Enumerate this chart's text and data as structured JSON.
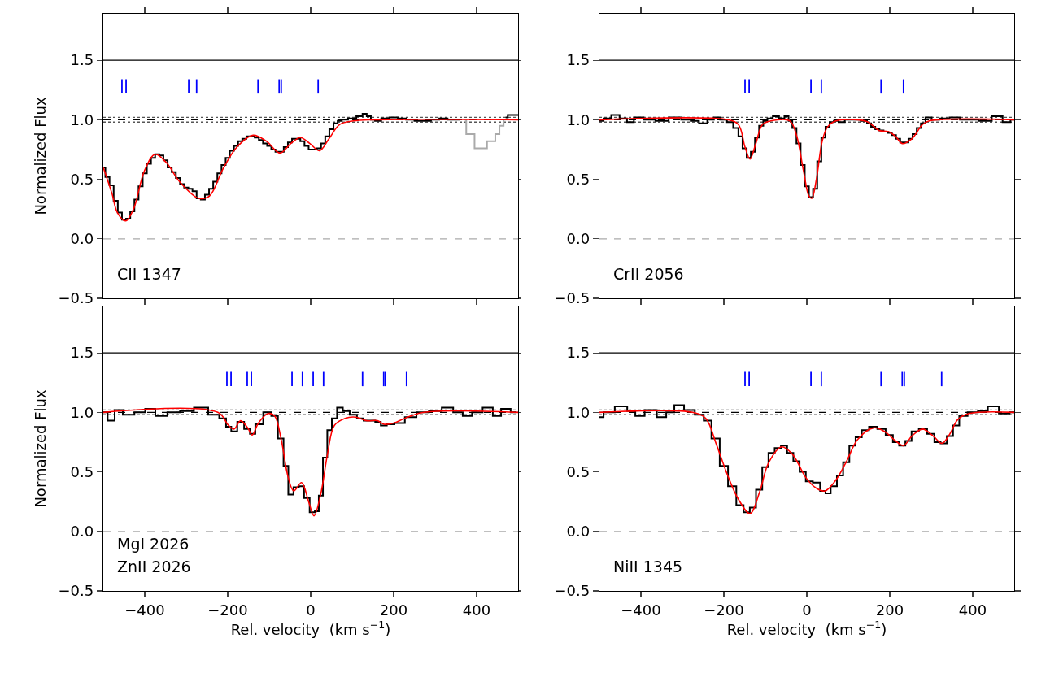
{
  "chart_data": [
    {
      "type": "line",
      "ylabel": "Normalized Flux",
      "annotations": [
        "CII 1347"
      ],
      "tick_labels": "y",
      "grid": false,
      "xlim": [
        -500,
        500
      ],
      "ylim": [
        -0.5,
        1.89
      ],
      "xticks": [
        {
          "value": -400,
          "label": null
        },
        {
          "value": -200,
          "label": null
        },
        {
          "value": 0,
          "label": null
        },
        {
          "value": 200,
          "label": null
        },
        {
          "value": 400,
          "label": null
        }
      ],
      "yticks": [
        {
          "value": -0.5,
          "label": "−0.5"
        },
        {
          "value": 0,
          "label": "0.0"
        },
        {
          "value": 0.5,
          "label": "0.5"
        },
        {
          "value": 1,
          "label": "1.0"
        },
        {
          "value": 1.5,
          "label": "1.5"
        }
      ],
      "ref_lines": [
        {
          "axis": "y",
          "value": 0,
          "color": "#aaaaaa",
          "line_style": "dashed"
        },
        {
          "axis": "y",
          "value": 1.02,
          "color": "#555555",
          "line_style": "dotted"
        },
        {
          "axis": "y",
          "value": 0.98,
          "color": "#555555",
          "line_style": "dotted"
        },
        {
          "axis": "y",
          "value": 1,
          "color": "#000000",
          "line_style": "dashed"
        },
        {
          "axis": "y",
          "value": 1.5,
          "color": "#000000",
          "line_style": "solid"
        }
      ],
      "series": [
        {
          "type": "step",
          "color": "#aaaaaa",
          "x": [
            370,
            380,
            390,
            400,
            410,
            420,
            430,
            440,
            450,
            460,
            470
          ],
          "values": [
            1.0,
            0.88,
            0.88,
            0.76,
            0.76,
            0.76,
            0.82,
            0.82,
            0.88,
            0.95,
            1.0
          ]
        },
        {
          "type": "step",
          "color": "#000000",
          "x": [
            -500,
            -490,
            -480,
            -470,
            -460,
            -450,
            -440,
            -430,
            -420,
            -410,
            -400,
            -390,
            -380,
            -370,
            -360,
            -350,
            -340,
            -330,
            -320,
            -310,
            -300,
            -290,
            -280,
            -270,
            -260,
            -250,
            -240,
            -230,
            -220,
            -210,
            -200,
            -190,
            -180,
            -170,
            -160,
            -150,
            -140,
            -130,
            -120,
            -110,
            -100,
            -90,
            -80,
            -70,
            -60,
            -50,
            -40,
            -30,
            -20,
            -10,
            0,
            10,
            20,
            30,
            40,
            50,
            60,
            70,
            80,
            100,
            120,
            130,
            140,
            150,
            160,
            180,
            200,
            220,
            240,
            260,
            280,
            300,
            320,
            340,
            360,
            380,
            400,
            420,
            440,
            460,
            470,
            480,
            500
          ],
          "values": [
            0.6,
            0.52,
            0.45,
            0.32,
            0.22,
            0.16,
            0.17,
            0.23,
            0.33,
            0.44,
            0.55,
            0.63,
            0.68,
            0.71,
            0.7,
            0.66,
            0.6,
            0.56,
            0.51,
            0.46,
            0.43,
            0.42,
            0.4,
            0.34,
            0.33,
            0.37,
            0.42,
            0.48,
            0.55,
            0.62,
            0.68,
            0.74,
            0.78,
            0.82,
            0.84,
            0.86,
            0.86,
            0.85,
            0.83,
            0.8,
            0.78,
            0.75,
            0.73,
            0.73,
            0.77,
            0.81,
            0.84,
            0.84,
            0.82,
            0.78,
            0.75,
            0.75,
            0.76,
            0.8,
            0.86,
            0.92,
            0.97,
            0.99,
            1.0,
            1.01,
            1.03,
            1.05,
            1.03,
            1.0,
            0.99,
            1.01,
            1.02,
            1.01,
            1.0,
            0.99,
            0.99,
            1.0,
            1.01,
            1.0,
            1.0,
            null,
            null,
            null,
            null,
            null,
            1.02,
            1.04,
            1.04
          ]
        },
        {
          "color": "#ff0000",
          "x": [
            -500,
            -479,
            -466,
            -446,
            -427,
            -401,
            -375,
            -348,
            -316,
            -270,
            -244,
            -211,
            -178,
            -139,
            -107,
            -74,
            -48,
            -25,
            -2,
            21,
            44,
            70,
            103,
            148,
            500
          ],
          "values": [
            0.6,
            0.38,
            0.22,
            0.15,
            0.25,
            0.57,
            0.71,
            0.64,
            0.48,
            0.34,
            0.36,
            0.59,
            0.77,
            0.87,
            0.82,
            0.72,
            0.8,
            0.85,
            0.8,
            0.74,
            0.84,
            0.96,
            0.99,
            1.0,
            1.0
          ]
        },
        {
          "type": "bar",
          "color": "#0000ff",
          "x": [
            -455,
            -445,
            -294,
            -275,
            -127,
            -76,
            -71,
            18
          ],
          "base": [
            1.22,
            1.22,
            1.22,
            1.22,
            1.22,
            1.22,
            1.22,
            1.22
          ],
          "values": [
            0.12,
            0.12,
            0.12,
            0.12,
            0.12,
            0.12,
            0.12,
            0.12
          ]
        }
      ]
    },
    {
      "type": "line",
      "annotations": [
        "CrII 2056"
      ],
      "tick_labels": "y",
      "grid": false,
      "xlim": [
        -500,
        500
      ],
      "ylim": [
        -0.5,
        1.89
      ],
      "xticks": [
        {
          "value": -400,
          "label": null
        },
        {
          "value": -200,
          "label": null
        },
        {
          "value": 0,
          "label": null
        },
        {
          "value": 200,
          "label": null
        },
        {
          "value": 400,
          "label": null
        }
      ],
      "yticks": [
        {
          "value": -0.5,
          "label": "−0.5"
        },
        {
          "value": 0,
          "label": "0.0"
        },
        {
          "value": 0.5,
          "label": "0.5"
        },
        {
          "value": 1,
          "label": "1.0"
        },
        {
          "value": 1.5,
          "label": "1.5"
        }
      ],
      "ref_lines": [
        {
          "axis": "y",
          "value": 0,
          "color": "#aaaaaa",
          "line_style": "dashed"
        },
        {
          "axis": "y",
          "value": 1.02,
          "color": "#555555",
          "line_style": "dotted"
        },
        {
          "axis": "y",
          "value": 0.98,
          "color": "#555555",
          "line_style": "dotted"
        },
        {
          "axis": "y",
          "value": 1,
          "color": "#000000",
          "line_style": "dashed"
        },
        {
          "axis": "y",
          "value": 1.5,
          "color": "#000000",
          "line_style": "solid"
        }
      ],
      "series": [
        {
          "type": "step",
          "color": "#000000",
          "x": [
            -500,
            -480,
            -463,
            -440,
            -427,
            -407,
            -380,
            -350,
            -316,
            -290,
            -270,
            -250,
            -230,
            -218,
            -200,
            -185,
            -170,
            -160,
            -150,
            -140,
            -130,
            -120,
            -110,
            -100,
            -90,
            -74,
            -60,
            -48,
            -40,
            -30,
            -20,
            -10,
            0,
            10,
            20,
            30,
            40,
            50,
            60,
            70,
            83,
            100,
            120,
            140,
            150,
            160,
            170,
            180,
            190,
            200,
            210,
            220,
            230,
            240,
            250,
            260,
            270,
            280,
            292,
            310,
            330,
            358,
            380,
            400,
            430,
            462,
            482,
            500
          ],
          "values": [
            0.99,
            1.01,
            1.04,
            1.01,
            0.98,
            1.02,
            1.0,
            0.99,
            1.02,
            1.0,
            0.99,
            0.97,
            1.0,
            1.02,
            1.0,
            0.98,
            0.93,
            0.86,
            0.76,
            0.68,
            0.73,
            0.85,
            0.95,
            0.99,
            1.01,
            1.03,
            1.01,
            1.03,
            0.99,
            0.93,
            0.8,
            0.62,
            0.44,
            0.35,
            0.42,
            0.65,
            0.85,
            0.94,
            0.98,
            0.99,
            0.98,
            1.0,
            1.0,
            0.99,
            0.97,
            0.94,
            0.92,
            0.91,
            0.9,
            0.89,
            0.87,
            0.84,
            0.81,
            0.81,
            0.84,
            0.88,
            0.93,
            0.97,
            1.02,
            1.0,
            1.01,
            1.02,
            1.0,
            1.0,
            0.99,
            1.03,
            0.98,
            1.0
          ]
        },
        {
          "color": "#ff0000",
          "x": [
            -500,
            -192,
            -165,
            -149,
            -137,
            -123,
            -107,
            -87,
            -41,
            -25,
            -8,
            5,
            12,
            24,
            37,
            50,
            70,
            122,
            148,
            174,
            197,
            214,
            230,
            253,
            279,
            295,
            500
          ],
          "values": [
            1.0,
            1.0,
            0.96,
            0.77,
            0.67,
            0.8,
            0.96,
            0.99,
            0.99,
            0.87,
            0.57,
            0.36,
            0.34,
            0.52,
            0.82,
            0.94,
            0.99,
            1.0,
            0.98,
            0.91,
            0.9,
            0.86,
            0.8,
            0.84,
            0.96,
            0.99,
            1.0
          ]
        },
        {
          "type": "bar",
          "color": "#0000ff",
          "x": [
            -149,
            -139,
            10,
            35,
            179,
            233
          ],
          "base": [
            1.22,
            1.22,
            1.22,
            1.22,
            1.22,
            1.22
          ],
          "values": [
            0.12,
            0.12,
            0.12,
            0.12,
            0.12,
            0.12
          ]
        }
      ]
    },
    {
      "type": "line",
      "ylabel": "Normalized Flux",
      "xlabel": "Rel. velocity  (km s$^{−1}$)",
      "annotations": [
        "MgI 2026",
        "ZnII 2026"
      ],
      "grid": false,
      "xlim": [
        -500,
        500
      ],
      "ylim": [
        -0.5,
        1.89
      ],
      "xticks": [
        {
          "value": -400,
          "label": "−400"
        },
        {
          "value": -200,
          "label": "−200"
        },
        {
          "value": 0,
          "label": "0"
        },
        {
          "value": 200,
          "label": "200"
        },
        {
          "value": 400,
          "label": "400"
        }
      ],
      "yticks": [
        {
          "value": -0.5,
          "label": "−0.5"
        },
        {
          "value": 0,
          "label": "0.0"
        },
        {
          "value": 0.5,
          "label": "0.5"
        },
        {
          "value": 1,
          "label": "1.0"
        },
        {
          "value": 1.5,
          "label": "1.5"
        }
      ],
      "ref_lines": [
        {
          "axis": "y",
          "value": 0,
          "color": "#aaaaaa",
          "line_style": "dashed"
        },
        {
          "axis": "y",
          "value": 1.02,
          "color": "#555555",
          "line_style": "dotted"
        },
        {
          "axis": "y",
          "value": 0.98,
          "color": "#555555",
          "line_style": "dotted"
        },
        {
          "axis": "y",
          "value": 1,
          "color": "#000000",
          "line_style": "dashed"
        },
        {
          "axis": "y",
          "value": 1.5,
          "color": "#000000",
          "line_style": "solid"
        }
      ],
      "series": [
        {
          "type": "step",
          "color": "#000000",
          "x": [
            -500,
            -479,
            -466,
            -440,
            -410,
            -388,
            -361,
            -330,
            -300,
            -263,
            -231,
            -210,
            -198,
            -185,
            -169,
            -152,
            -141,
            -126,
            -103,
            -87,
            -71,
            -60,
            -48,
            -35,
            -22,
            -10,
            5,
            15,
            24,
            35,
            45,
            57,
            70,
            85,
            103,
            120,
            135,
            150,
            161,
            177,
            190,
            214,
            240,
            270,
            300,
            332,
            355,
            378,
            400,
            429,
            449,
            469,
            495
          ],
          "values": [
            1.0,
            0.93,
            1.02,
            0.98,
            1.0,
            1.03,
            0.97,
            1.0,
            1.01,
            1.04,
            0.98,
            0.95,
            0.88,
            0.84,
            0.92,
            0.86,
            0.82,
            0.9,
            1.0,
            0.97,
            0.78,
            0.55,
            0.31,
            0.37,
            0.38,
            0.28,
            0.16,
            0.17,
            0.3,
            0.62,
            0.85,
            0.95,
            1.04,
            1.01,
            0.98,
            0.95,
            0.93,
            0.93,
            0.92,
            0.89,
            0.9,
            0.91,
            0.96,
            1.0,
            1.01,
            1.04,
            1.0,
            0.97,
            1.0,
            1.04,
            0.97,
            1.03,
            1.0
          ]
        },
        {
          "color": "#ff0000",
          "x": [
            -500,
            -224,
            -198,
            -185,
            -169,
            -152,
            -141,
            -126,
            -103,
            -87,
            -71,
            -54,
            -41,
            -22,
            -5,
            8,
            24,
            41,
            57,
            83,
            109,
            135,
            161,
            177,
            200,
            227,
            273,
            500
          ],
          "values": [
            1.0,
            1.0,
            0.89,
            0.86,
            0.93,
            0.87,
            0.81,
            0.91,
            0.99,
            0.97,
            0.77,
            0.45,
            0.34,
            0.41,
            0.25,
            0.13,
            0.31,
            0.66,
            0.89,
            0.95,
            0.96,
            0.93,
            0.93,
            0.9,
            0.91,
            0.95,
            1.0,
            1.0
          ]
        },
        {
          "type": "bar",
          "color": "#0000ff",
          "x": [
            -202,
            -192,
            -153,
            -143,
            -45,
            -20,
            6,
            31,
            125,
            176,
            180,
            231
          ],
          "base": [
            1.22,
            1.22,
            1.22,
            1.22,
            1.22,
            1.22,
            1.22,
            1.22,
            1.22,
            1.22,
            1.22,
            1.22
          ],
          "values": [
            0.12,
            0.12,
            0.12,
            0.12,
            0.12,
            0.12,
            0.12,
            0.12,
            0.12,
            0.12,
            0.12,
            0.12
          ]
        }
      ]
    },
    {
      "type": "line",
      "xlabel": "Rel. velocity  (km s$^{−1}$)",
      "annotations": [
        "NiII 1345"
      ],
      "grid": false,
      "xlim": [
        -500,
        500
      ],
      "ylim": [
        -0.5,
        1.89
      ],
      "xticks": [
        {
          "value": -400,
          "label": "−400"
        },
        {
          "value": -200,
          "label": "−200"
        },
        {
          "value": 0,
          "label": "0"
        },
        {
          "value": 200,
          "label": "200"
        },
        {
          "value": 400,
          "label": "400"
        }
      ],
      "yticks": [
        {
          "value": -0.5,
          "label": "−0.5"
        },
        {
          "value": 0,
          "label": "0.0"
        },
        {
          "value": 0.5,
          "label": "0.5"
        },
        {
          "value": 1,
          "label": "1.0"
        },
        {
          "value": 1.5,
          "label": "1.5"
        }
      ],
      "ref_lines": [
        {
          "axis": "y",
          "value": 0,
          "color": "#aaaaaa",
          "line_style": "dashed"
        },
        {
          "axis": "y",
          "value": 1.02,
          "color": "#555555",
          "line_style": "dotted"
        },
        {
          "axis": "y",
          "value": 0.98,
          "color": "#555555",
          "line_style": "dotted"
        },
        {
          "axis": "y",
          "value": 1,
          "color": "#000000",
          "line_style": "dashed"
        },
        {
          "axis": "y",
          "value": 1.5,
          "color": "#000000",
          "line_style": "solid"
        }
      ],
      "series": [
        {
          "type": "step",
          "color": "#000000",
          "x": [
            -500,
            -480,
            -446,
            -420,
            -407,
            -375,
            -348,
            -330,
            -309,
            -283,
            -257,
            -240,
            -220,
            -200,
            -180,
            -160,
            -145,
            -130,
            -115,
            -100,
            -85,
            -70,
            -55,
            -40,
            -25,
            -10,
            5,
            24,
            40,
            50,
            65,
            80,
            95,
            110,
            125,
            140,
            160,
            180,
            200,
            215,
            230,
            245,
            260,
            280,
            300,
            315,
            330,
            345,
            360,
            375,
            400,
            425,
            448,
            478,
            500
          ],
          "values": [
            0.96,
            1.0,
            1.05,
            1.01,
            0.97,
            1.02,
            0.96,
            1.0,
            1.06,
            1.02,
            0.98,
            0.93,
            0.78,
            0.55,
            0.38,
            0.22,
            0.16,
            0.2,
            0.35,
            0.54,
            0.66,
            0.7,
            0.72,
            0.66,
            0.59,
            0.5,
            0.42,
            0.41,
            0.34,
            0.32,
            0.38,
            0.47,
            0.58,
            0.72,
            0.79,
            0.85,
            0.88,
            0.86,
            0.81,
            0.75,
            0.72,
            0.76,
            0.84,
            0.86,
            0.82,
            0.75,
            0.74,
            0.8,
            0.89,
            0.97,
            1.0,
            1.01,
            1.05,
            0.99,
            1.0
          ]
        },
        {
          "color": "#ff0000",
          "x": [
            -500,
            -276,
            -244,
            -218,
            -192,
            -165,
            -137,
            -113,
            -93,
            -61,
            -35,
            -2,
            24,
            44,
            70,
            96,
            122,
            161,
            187,
            214,
            233,
            253,
            279,
            305,
            326,
            345,
            364,
            391,
            500
          ],
          "values": [
            1.0,
            1.0,
            0.95,
            0.73,
            0.48,
            0.27,
            0.15,
            0.34,
            0.57,
            0.71,
            0.65,
            0.45,
            0.36,
            0.34,
            0.43,
            0.59,
            0.77,
            0.87,
            0.84,
            0.76,
            0.72,
            0.8,
            0.86,
            0.8,
            0.74,
            0.82,
            0.94,
            0.99,
            1.0
          ]
        },
        {
          "type": "bar",
          "color": "#0000ff",
          "x": [
            -149,
            -139,
            10,
            35,
            179,
            230,
            235,
            325
          ],
          "base": [
            1.22,
            1.22,
            1.22,
            1.22,
            1.22,
            1.22,
            1.22,
            1.22
          ],
          "values": [
            0.12,
            0.12,
            0.12,
            0.12,
            0.12,
            0.12,
            0.12,
            0.12
          ]
        }
      ]
    }
  ]
}
